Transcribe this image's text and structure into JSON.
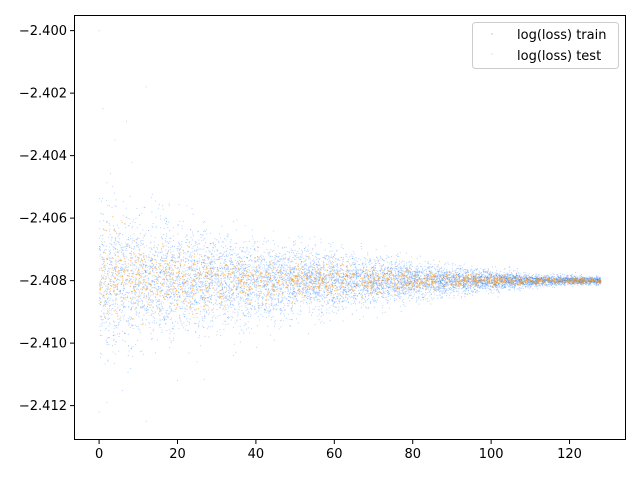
{
  "chart_data": {
    "type": "scatter",
    "title": "",
    "xlabel": "",
    "ylabel": "",
    "xlim": [
      -6.4,
      134.4
    ],
    "ylim": [
      -2.4131,
      -2.3995
    ],
    "xticks": [
      0,
      20,
      40,
      60,
      80,
      100,
      120
    ],
    "xtick_labels": [
      "0",
      "20",
      "40",
      "60",
      "80",
      "100",
      "120"
    ],
    "yticks": [
      -2.4,
      -2.402,
      -2.404,
      -2.406,
      -2.408,
      -2.41,
      -2.412
    ],
    "ytick_labels": [
      "−2.400",
      "−2.402",
      "−2.404",
      "−2.406",
      "−2.408",
      "−2.410",
      "−2.412"
    ],
    "grid": false,
    "legend_position": "top-right",
    "series": [
      {
        "name": "log(loss) train",
        "color": "#1f77ff",
        "x_range": [
          0,
          128
        ],
        "center": -2.408,
        "spread_at_x0": 0.0011,
        "spread_at_xmax": 6e-05,
        "outlier_points": [
          [
            0,
            -2.4
          ],
          [
            12,
            -2.4018
          ],
          [
            1,
            -2.4025
          ],
          [
            7,
            -2.4029
          ],
          [
            4,
            -2.4035
          ],
          [
            0,
            -2.4122
          ],
          [
            2,
            -2.4119
          ],
          [
            12,
            -2.4125
          ],
          [
            20,
            -2.4112
          ],
          [
            25,
            -2.4106
          ]
        ]
      },
      {
        "name": "log(loss) test",
        "color": "#ff9f1a",
        "x_range": [
          0,
          128
        ],
        "center": -2.408,
        "spread_at_x0": 0.0006,
        "spread_at_xmax": 4e-05
      }
    ]
  }
}
